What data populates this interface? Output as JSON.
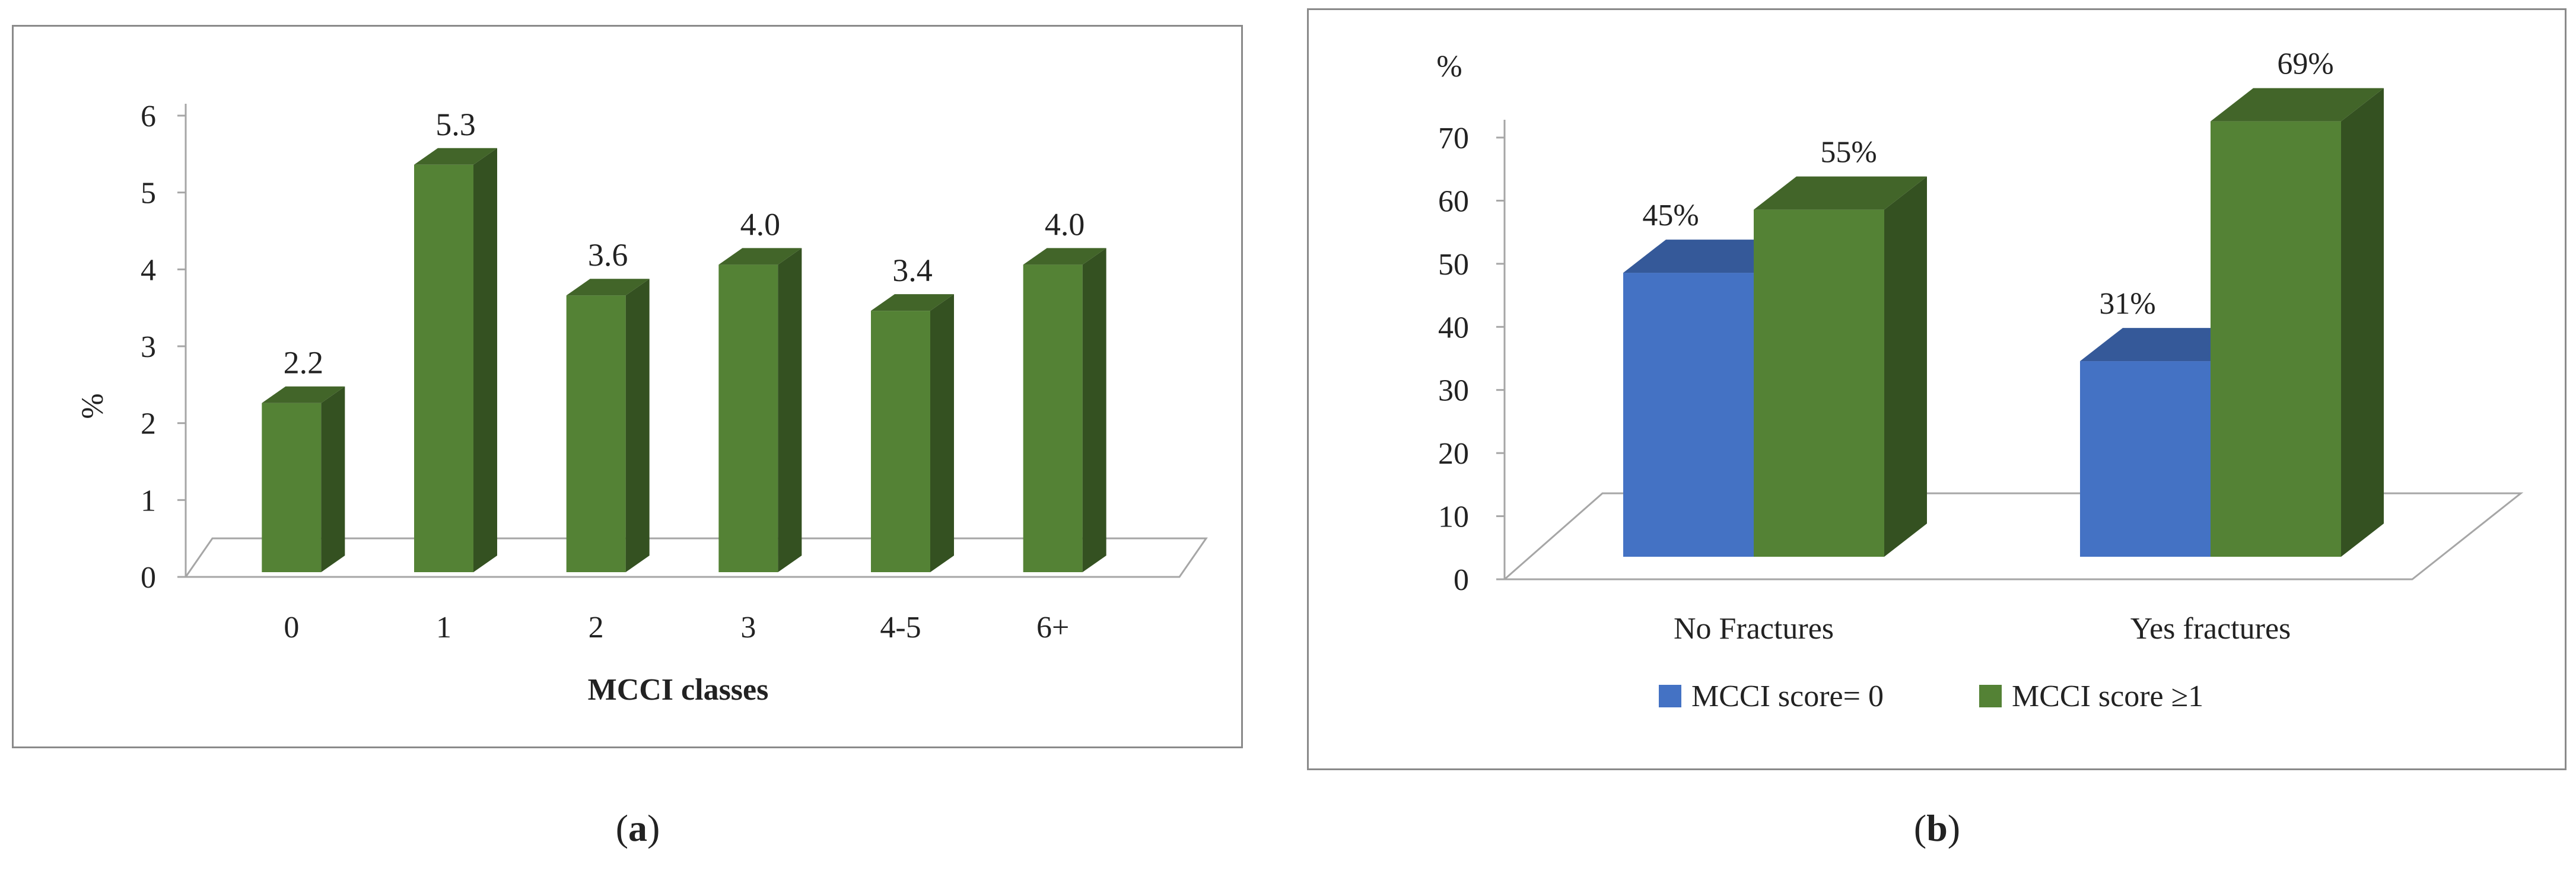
{
  "chart_data": [
    {
      "type": "bar",
      "panel": "a",
      "caption_letter": "a",
      "categories": [
        "0",
        "1",
        "2",
        "3",
        "4-5",
        "6+"
      ],
      "values": [
        2.2,
        5.3,
        3.6,
        4.0,
        3.4,
        4.0
      ],
      "value_labels": [
        "2.2",
        "5.3",
        "3.6",
        "4.0",
        "3.4",
        "4.0"
      ],
      "xlabel": "MCCI classes",
      "ylabel": "%",
      "ylim": [
        0,
        6
      ],
      "yticks": [
        "0",
        "1",
        "2",
        "3",
        "4",
        "5",
        "6"
      ],
      "bar_color": "#548235",
      "grid": false,
      "legend": "none",
      "style": "3d-columns"
    },
    {
      "type": "bar",
      "panel": "b",
      "caption_letter": "b",
      "categories": [
        "No Fractures",
        "Yes fractures"
      ],
      "series": [
        {
          "name": "MCCI score= 0",
          "values": [
            45,
            31
          ],
          "value_labels": [
            "45%",
            "31%"
          ],
          "color": "#4472c4"
        },
        {
          "name": "MCCI score ≥1",
          "values": [
            55,
            69
          ],
          "value_labels": [
            "55%",
            "69%"
          ],
          "color": "#548235"
        }
      ],
      "ylabel": "%",
      "xlabel": "",
      "ylim": [
        0,
        70
      ],
      "yticks": [
        "0",
        "10",
        "20",
        "30",
        "40",
        "50",
        "60",
        "70"
      ],
      "grid": false,
      "legend": "bottom",
      "style": "3d-clustered-columns"
    }
  ]
}
